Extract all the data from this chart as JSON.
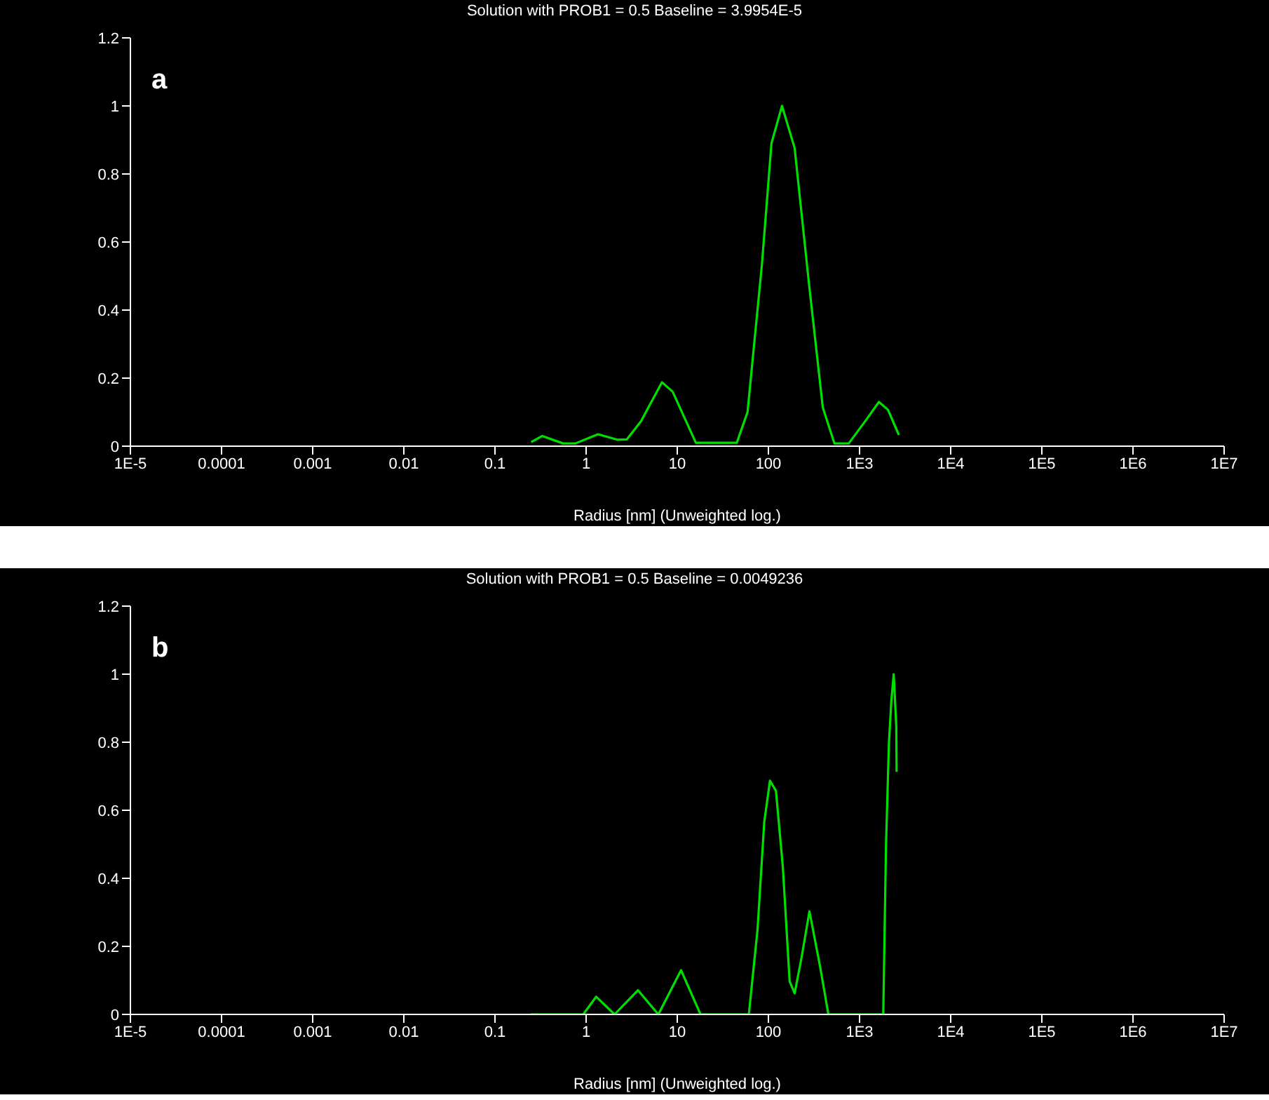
{
  "chart_data": [
    {
      "type": "line",
      "title": "Solution with PROB1 = 0.5 Baseline = 3.9954E-5",
      "xlabel": "Radius [nm] (Unweighted log.)",
      "annotations": [
        "a"
      ],
      "log": "x",
      "grid": false,
      "legend": false,
      "marker": "none",
      "line_style": "solid",
      "xlim": [
        1e-05,
        10000000
      ],
      "xticks": [
        {
          "value": 1e-05,
          "label": "1E-5"
        },
        0.0001,
        0.001,
        0.01,
        0.1,
        1,
        10,
        100,
        {
          "value": 1000,
          "label": "1E3"
        },
        {
          "value": 10000,
          "label": "1E4"
        },
        {
          "value": 100000,
          "label": "1E5"
        },
        {
          "value": 1000000,
          "label": "1E6"
        },
        {
          "value": 10000000,
          "label": "1E7"
        }
      ],
      "ylim": [
        0,
        1.2
      ],
      "yticks": [
        0,
        0.2,
        0.4,
        0.6,
        0.8,
        1,
        1.2
      ],
      "series": [
        {
          "color": "#00e000",
          "x": [
            0.25,
            0.33,
            0.56,
            0.76,
            1.35,
            2.2,
            2.8,
            4.0,
            6.8,
            8.9,
            16,
            45,
            59,
            85,
            108,
            141,
            194,
            278,
            395,
            530,
            760,
            1150,
            1630,
            2050,
            2700
          ],
          "values": [
            0.012,
            0.03,
            0.008,
            0.008,
            0.035,
            0.019,
            0.02,
            0.073,
            0.188,
            0.16,
            0.01,
            0.01,
            0.1,
            0.536,
            0.89,
            1.0,
            0.876,
            0.48,
            0.114,
            0.008,
            0.008,
            0.073,
            0.13,
            0.107,
            0.033
          ]
        }
      ]
    },
    {
      "type": "line",
      "title": "Solution with PROB1 = 0.5 Baseline = 0.0049236",
      "xlabel": "Radius [nm] (Unweighted log.)",
      "annotations": [
        "b"
      ],
      "log": "x",
      "grid": false,
      "legend": false,
      "marker": "none",
      "line_style": "solid",
      "xlim": [
        1e-05,
        10000000
      ],
      "xticks": [
        {
          "value": 1e-05,
          "label": "1E-5"
        },
        0.0001,
        0.001,
        0.01,
        0.1,
        1,
        10,
        100,
        {
          "value": 1000,
          "label": "1E3"
        },
        {
          "value": 10000,
          "label": "1E4"
        },
        {
          "value": 100000,
          "label": "1E5"
        },
        {
          "value": 1000000,
          "label": "1E6"
        },
        {
          "value": 10000000,
          "label": "1E7"
        }
      ],
      "ylim": [
        0,
        1.2
      ],
      "yticks": [
        0,
        0.2,
        0.4,
        0.6,
        0.8,
        1,
        1.2
      ],
      "series": [
        {
          "color": "#00e000",
          "x": [
            0.245,
            0.93,
            1.29,
            2.05,
            3.7,
            6.2,
            11,
            18,
            61,
            76,
            90,
            104,
            121,
            144,
            171,
            194,
            231,
            282,
            370,
            455,
            1820,
            1950,
            2100,
            2230,
            2370,
            2530,
            2550
          ],
          "values": [
            0,
            0,
            0.052,
            0,
            0.071,
            0,
            0.13,
            0,
            0,
            0.25,
            0.565,
            0.687,
            0.657,
            0.433,
            0.097,
            0.062,
            0.167,
            0.303,
            0.139,
            0,
            0,
            0.496,
            0.797,
            0.92,
            1.0,
            0.846,
            0.713
          ]
        }
      ]
    }
  ]
}
